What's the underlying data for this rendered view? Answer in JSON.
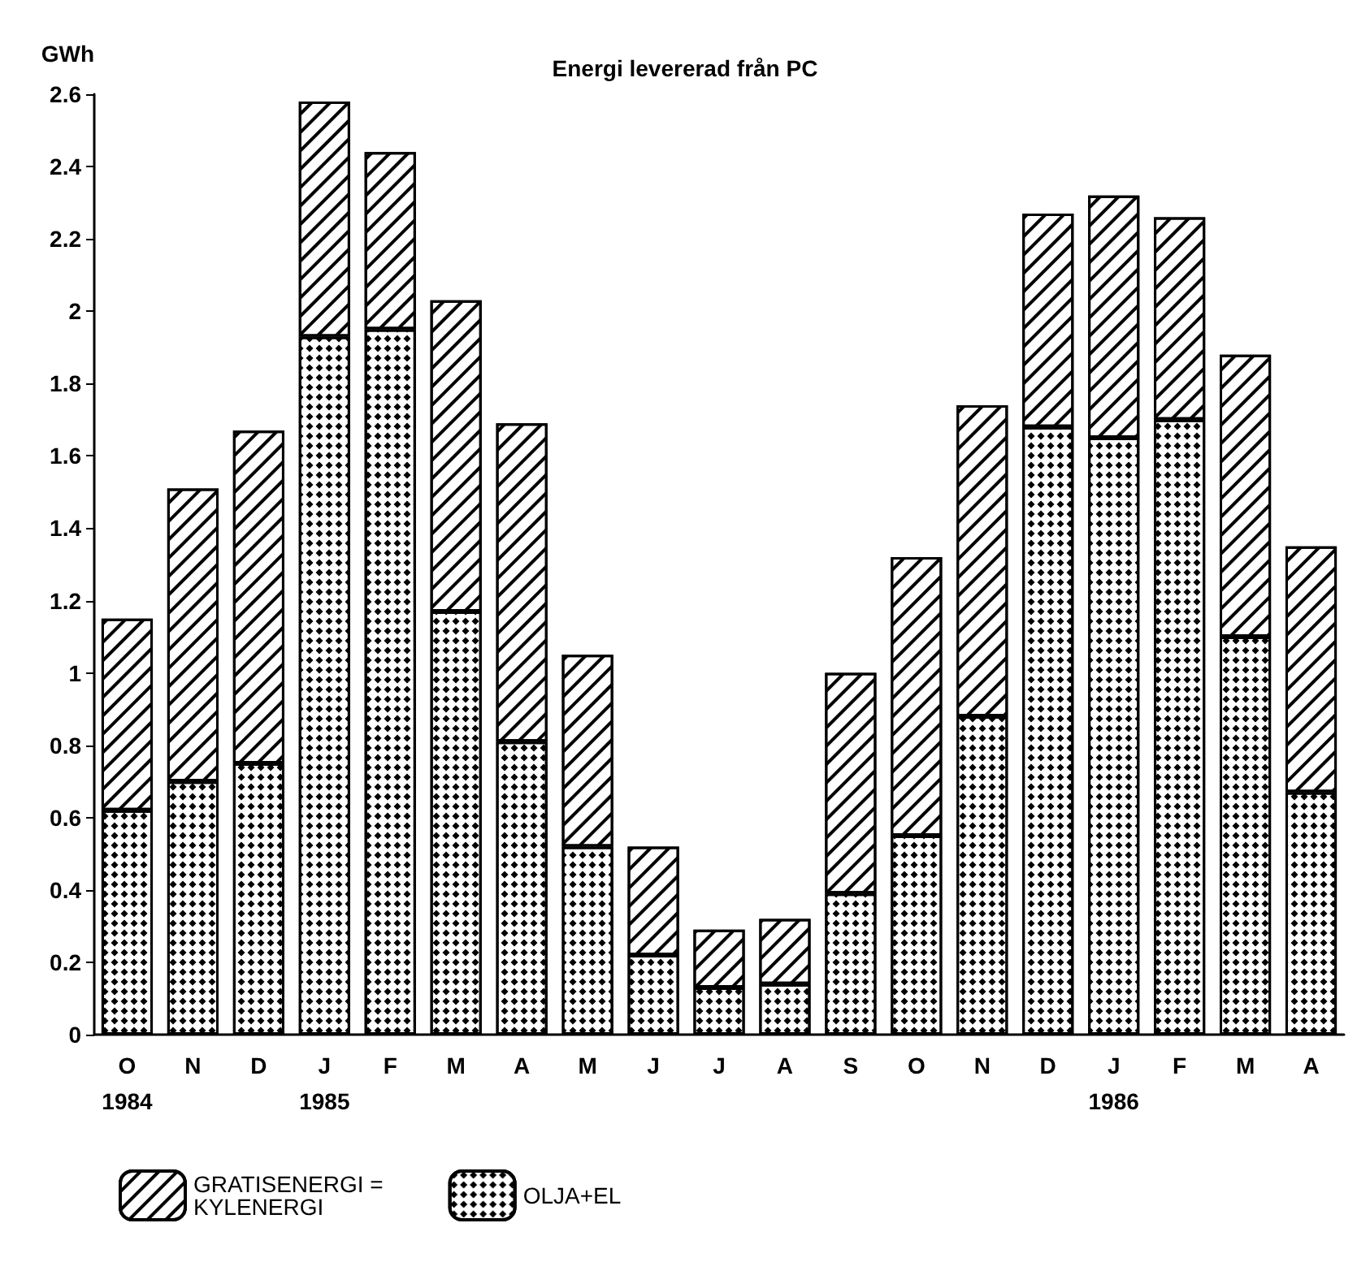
{
  "chart_data": {
    "type": "bar",
    "title": "Energi levererad från PC",
    "ylabel": "GWh",
    "stacked": true,
    "categories": [
      "O\n1984",
      "N",
      "D",
      "J\n1985",
      "F",
      "M",
      "A",
      "M",
      "J",
      "J",
      "A",
      "S",
      "O",
      "N",
      "D",
      "J\n1986",
      "F",
      "M",
      "A"
    ],
    "series": [
      {
        "name": "OLJA+EL",
        "color": "#ffffff",
        "values": [
          0.62,
          0.7,
          0.75,
          1.93,
          1.95,
          1.17,
          0.81,
          0.52,
          0.22,
          0.13,
          0.14,
          0.39,
          0.55,
          0.88,
          1.68,
          1.65,
          1.7,
          1.1,
          0.67
        ]
      },
      {
        "name": "GRATISENERGI =\nKYLENERGI",
        "color": "#ffffff",
        "values": [
          0.53,
          0.81,
          0.92,
          0.65,
          0.49,
          0.86,
          0.88,
          0.53,
          0.3,
          0.16,
          0.18,
          0.61,
          0.77,
          0.86,
          0.59,
          0.67,
          0.56,
          0.78,
          0.68
        ]
      }
    ],
    "ylim": [
      0,
      2.6
    ],
    "yticks": [
      0,
      0.2,
      0.4,
      0.6,
      0.8,
      1,
      1.2,
      1.4,
      1.6,
      1.8,
      2,
      2.2,
      2.4,
      2.6
    ],
    "grid": false,
    "legend": "bottom left"
  }
}
